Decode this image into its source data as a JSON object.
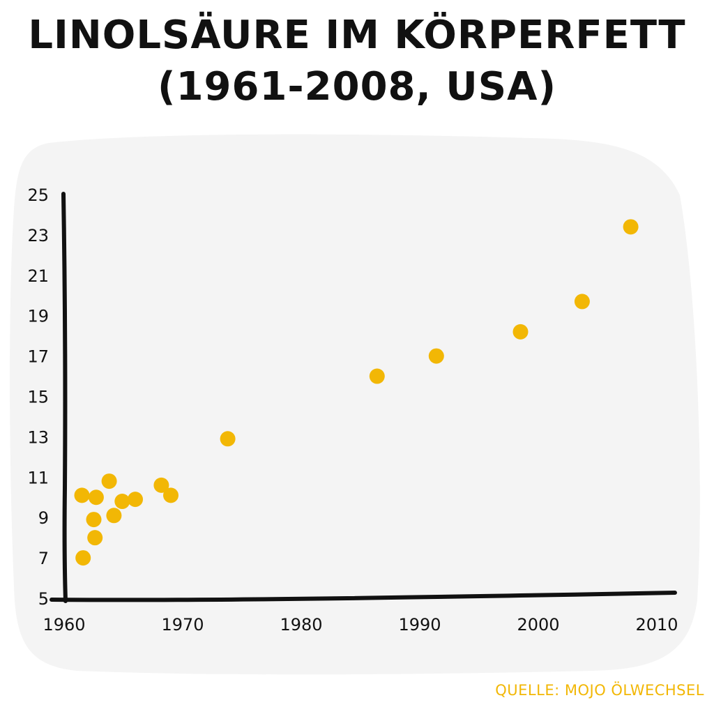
{
  "title_lines": [
    "Linolsäure im Körperfett",
    "(1961-2008, USA)"
  ],
  "source": "Quelle: Mojo Ölwechsel",
  "colors": {
    "point": "#f2b705",
    "axis": "#111111",
    "panel": "#f4f4f4"
  },
  "chart_data": {
    "type": "scatter",
    "title": "Linolsäure im Körperfett (1961-2008, USA)",
    "xlabel": "",
    "ylabel": "",
    "xlim": [
      1960,
      2010
    ],
    "ylim": [
      5,
      25
    ],
    "xticks": [
      1960,
      1970,
      1980,
      1990,
      2000,
      2010
    ],
    "yticks": [
      5,
      7,
      9,
      11,
      13,
      15,
      17,
      19,
      21,
      23,
      25
    ],
    "grid": false,
    "series": [
      {
        "points": [
          {
            "x": 1961.5,
            "y": 10.1
          },
          {
            "x": 1961.6,
            "y": 7.0
          },
          {
            "x": 1962.5,
            "y": 8.9
          },
          {
            "x": 1962.6,
            "y": 8.0
          },
          {
            "x": 1962.7,
            "y": 10.0
          },
          {
            "x": 1963.8,
            "y": 10.8
          },
          {
            "x": 1964.2,
            "y": 9.1
          },
          {
            "x": 1964.9,
            "y": 9.8
          },
          {
            "x": 1966.0,
            "y": 9.9
          },
          {
            "x": 1968.2,
            "y": 10.6
          },
          {
            "x": 1969.0,
            "y": 10.1
          },
          {
            "x": 1973.8,
            "y": 12.9
          },
          {
            "x": 1986.4,
            "y": 16.0
          },
          {
            "x": 1991.4,
            "y": 17.0
          },
          {
            "x": 1998.5,
            "y": 18.2
          },
          {
            "x": 2003.7,
            "y": 19.7
          },
          {
            "x": 2007.8,
            "y": 23.4
          }
        ]
      }
    ]
  }
}
